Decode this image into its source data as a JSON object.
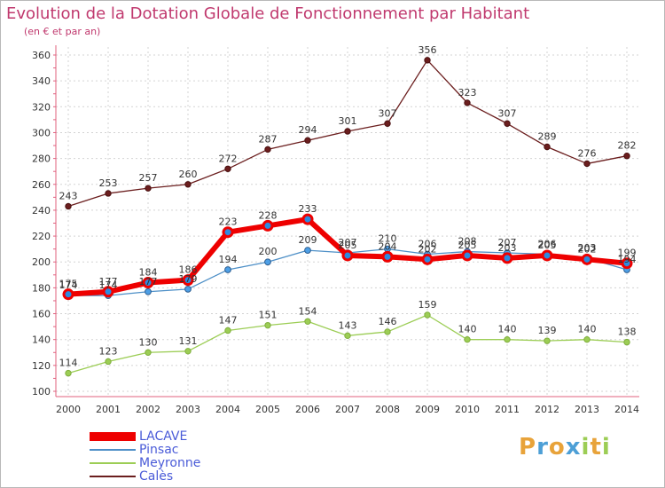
{
  "header": {
    "title": "Evolution de la Dotation Globale de Fonctionnement par Habitant",
    "subtitle": "(en € et par an)"
  },
  "logo": {
    "letters": [
      "P",
      "r",
      "o",
      "x",
      "i",
      "t",
      "i"
    ],
    "colors": [
      "#e8a33a",
      "#4d9fd6",
      "#e8a33a",
      "#4d9fd6",
      "#9ccd55",
      "#e8a33a",
      "#9ccd55"
    ]
  },
  "chart_data": {
    "type": "line",
    "title": "Evolution de la Dotation Globale de Fonctionnement par Habitant",
    "subtitle": "(en € et par an)",
    "xlabel": "",
    "ylabel": "",
    "categories": [
      "2000",
      "2001",
      "2002",
      "2003",
      "2004",
      "2005",
      "2006",
      "2007",
      "2008",
      "2009",
      "2010",
      "2011",
      "2012",
      "2013",
      "2014"
    ],
    "ylim": [
      100,
      360
    ],
    "yticks": [
      100,
      120,
      140,
      160,
      180,
      200,
      220,
      240,
      260,
      280,
      300,
      320,
      340,
      360
    ],
    "grid": true,
    "legend_position": "bottom-left",
    "series": [
      {
        "name": "Calès",
        "color": "#6b1e1e",
        "values": [
          243,
          253,
          257,
          260,
          272,
          287,
          294,
          301,
          307,
          356,
          323,
          307,
          289,
          276,
          282
        ],
        "labels": [
          "243",
          "253",
          "257",
          "260",
          "272",
          "287",
          "294",
          "301",
          "307",
          "356",
          "323",
          "307",
          "289",
          "276",
          "282"
        ]
      },
      {
        "name": "Meyronne",
        "color": "#9ccd55",
        "values": [
          114,
          123,
          130,
          131,
          147,
          151,
          154,
          143,
          146,
          159,
          140,
          140,
          139,
          140,
          138
        ],
        "labels": [
          "114",
          "123",
          "130",
          "131",
          "147",
          "151",
          "154",
          "143",
          "146",
          "159",
          "140",
          "140",
          "139",
          "140",
          "138"
        ]
      },
      {
        "name": "Pinsac",
        "color": "#4d8fc7",
        "values": [
          174,
          174,
          177,
          179,
          194,
          200,
          209,
          207,
          210,
          206,
          208,
          207,
          206,
          203,
          194
        ],
        "labels": [
          "174",
          "174",
          "177",
          "179",
          "194",
          "200",
          "209",
          "207",
          "210",
          "206",
          "208",
          "207",
          "206",
          "203",
          "194"
        ]
      },
      {
        "name": "LACAVE",
        "color": "#ee0000",
        "values": [
          175,
          177,
          184,
          186,
          223,
          228,
          233,
          205,
          204,
          202,
          205,
          203,
          205,
          202,
          199
        ],
        "labels": [
          "175",
          "177",
          "184",
          "186",
          "223",
          "228",
          "233",
          "205",
          "204",
          "202",
          "205",
          "203",
          "205",
          "202",
          "199"
        ]
      }
    ],
    "legend": [
      "LACAVE",
      "Pinsac",
      "Meyronne",
      "Calès"
    ]
  }
}
